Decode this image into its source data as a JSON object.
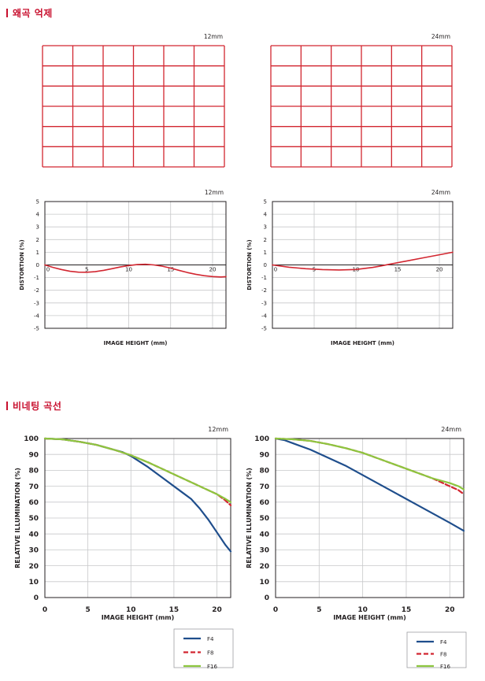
{
  "sections": {
    "distortion_title": "왜곡 억제",
    "vignetting_title": "비네팅 곡선"
  },
  "grids": [
    {
      "focal": "12mm",
      "color": "#d22630"
    },
    {
      "focal": "24mm",
      "color": "#d22630"
    }
  ],
  "legend": {
    "entries": [
      {
        "name": "F4",
        "color": "#1f4e8c",
        "dash": false
      },
      {
        "name": "F8",
        "color": "#d22630",
        "dash": true
      },
      {
        "name": "F16",
        "color": "#8dc63f",
        "dash": false
      }
    ]
  },
  "chart_data": [
    {
      "id": "dist-12",
      "type": "line",
      "corner_label": "12mm",
      "xlabel": "IMAGE HEIGHT (mm)",
      "ylabel": "DISTORTION (%)",
      "xlim": [
        0,
        21.6
      ],
      "ylim": [
        -5,
        5
      ],
      "xticks": [
        0,
        5,
        10,
        15,
        20
      ],
      "yticks": [
        5,
        4,
        3,
        2,
        1,
        0,
        -1,
        -2,
        -3,
        -4,
        -5
      ],
      "grid": true,
      "series": [
        {
          "color": "#d22630",
          "x": [
            0,
            1,
            2,
            3,
            4,
            5,
            6,
            7,
            8,
            9,
            10,
            11,
            12,
            13,
            14,
            15,
            16,
            17,
            18,
            19,
            20,
            21,
            21.6
          ],
          "y": [
            0,
            -0.2,
            -0.37,
            -0.5,
            -0.57,
            -0.58,
            -0.53,
            -0.43,
            -0.3,
            -0.16,
            -0.05,
            0.03,
            0.05,
            0.0,
            -0.1,
            -0.25,
            -0.43,
            -0.6,
            -0.74,
            -0.85,
            -0.92,
            -0.95,
            -0.93
          ]
        }
      ]
    },
    {
      "id": "dist-24",
      "type": "line",
      "corner_label": "24mm",
      "xlabel": "IMAGE HEIGHT (mm)",
      "ylabel": "DISTORTION (%)",
      "xlim": [
        0,
        21.6
      ],
      "ylim": [
        -5,
        5
      ],
      "xticks": [
        0,
        5,
        10,
        15,
        20
      ],
      "yticks": [
        5,
        4,
        3,
        2,
        1,
        0,
        -1,
        -2,
        -3,
        -4,
        -5
      ],
      "grid": true,
      "series": [
        {
          "color": "#d22630",
          "x": [
            0,
            2,
            4,
            6,
            8,
            10,
            12,
            13,
            14,
            16,
            18,
            20,
            21.6
          ],
          "y": [
            0,
            -0.18,
            -0.3,
            -0.37,
            -0.4,
            -0.36,
            -0.2,
            -0.08,
            0.05,
            0.3,
            0.55,
            0.8,
            1.0
          ]
        }
      ]
    },
    {
      "id": "vig-12",
      "type": "line",
      "corner_label": "12mm",
      "xlabel": "IMAGE HEIGHT (mm)",
      "ylabel": "RELATIVE ILLUMINATION (%)",
      "xlim": [
        0,
        21.6
      ],
      "ylim": [
        0,
        100
      ],
      "xticks": [
        0,
        5,
        10,
        15,
        20
      ],
      "yticks": [
        100,
        90,
        80,
        70,
        60,
        50,
        40,
        30,
        20,
        10,
        0
      ],
      "grid": true,
      "series": [
        {
          "name": "F4",
          "color": "#1f4e8c",
          "dash": false,
          "x": [
            0,
            2,
            4,
            6,
            8,
            9,
            10,
            12,
            14,
            16,
            17,
            18,
            19,
            20,
            21,
            21.6
          ],
          "y": [
            100,
            99.5,
            98,
            96,
            93,
            91.5,
            89,
            82,
            74,
            66,
            62,
            56,
            49,
            41,
            33,
            29
          ]
        },
        {
          "name": "F8",
          "color": "#d22630",
          "dash": true,
          "x": [
            0,
            2,
            4,
            6,
            8,
            10,
            12,
            14,
            16,
            18,
            20,
            21,
            21.6
          ],
          "y": [
            100,
            99.5,
            98,
            96,
            93,
            89.5,
            85,
            80,
            75,
            70,
            65,
            61,
            58
          ]
        },
        {
          "name": "F16",
          "color": "#8dc63f",
          "dash": false,
          "x": [
            0,
            2,
            4,
            6,
            8,
            10,
            12,
            14,
            16,
            18,
            20,
            21,
            21.6
          ],
          "y": [
            100,
            99.5,
            98,
            96,
            93,
            89.5,
            85,
            80,
            75,
            70,
            65,
            62,
            60
          ]
        }
      ]
    },
    {
      "id": "vig-24",
      "type": "line",
      "corner_label": "24mm",
      "xlabel": "IMAGE HEIGHT (mm)",
      "ylabel": "RELATIVE ILLUMINATION (%)",
      "xlim": [
        0,
        21.6
      ],
      "ylim": [
        0,
        100
      ],
      "xticks": [
        0,
        5,
        10,
        15,
        20
      ],
      "yticks": [
        100,
        90,
        80,
        70,
        60,
        50,
        40,
        30,
        20,
        10,
        0
      ],
      "grid": true,
      "series": [
        {
          "name": "F4",
          "color": "#1f4e8c",
          "dash": false,
          "x": [
            0,
            1,
            2,
            4,
            6,
            8,
            10,
            12,
            14,
            16,
            18,
            20,
            21.6
          ],
          "y": [
            100,
            99,
            97,
            93,
            88,
            83,
            77,
            71,
            65,
            59,
            53,
            47,
            42
          ]
        },
        {
          "name": "F8",
          "color": "#d22630",
          "dash": true,
          "x": [
            0,
            2,
            4,
            6,
            8,
            10,
            12,
            14,
            16,
            18,
            19,
            20,
            21,
            21.6
          ],
          "y": [
            100,
            99.5,
            98.5,
            96.5,
            94,
            91,
            87,
            83,
            79,
            75,
            72.5,
            70,
            67.5,
            65
          ]
        },
        {
          "name": "F16",
          "color": "#8dc63f",
          "dash": false,
          "x": [
            0,
            2,
            4,
            6,
            8,
            10,
            12,
            14,
            16,
            18,
            20,
            21,
            21.6
          ],
          "y": [
            100,
            99.5,
            98.5,
            96.5,
            94,
            91,
            87,
            83,
            79,
            75,
            72,
            70,
            68
          ]
        }
      ]
    }
  ]
}
